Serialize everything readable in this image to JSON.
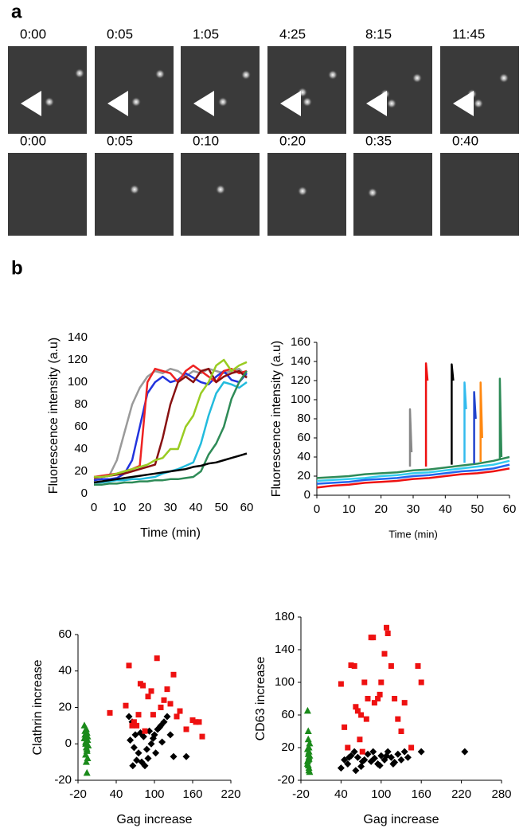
{
  "panel_a": {
    "label": "a",
    "time_labels": [
      [
        "0:00",
        "0:05",
        "1:05",
        "4:25",
        "8:15",
        "11:45"
      ],
      [
        "0:00",
        "0:05",
        "0:10",
        "0:20",
        "0:35",
        "0:40"
      ]
    ]
  },
  "panel_b_label": "b",
  "chart_data": [
    {
      "type": "line",
      "xlabel": "Time (min)",
      "ylabel": "Fluorescence intensity (a.u)",
      "x": [
        0,
        3,
        6,
        9,
        12,
        15,
        18,
        21,
        24,
        27,
        30,
        33,
        36,
        39,
        42,
        45,
        48,
        51,
        54,
        57,
        60
      ],
      "xlim": [
        0,
        60
      ],
      "xticks": [
        0,
        10,
        20,
        30,
        40,
        50,
        60
      ],
      "ylim": [
        0,
        140
      ],
      "yticks": [
        0,
        20,
        40,
        60,
        80,
        100,
        120,
        140
      ],
      "series": [
        {
          "color": "#9a9a9a",
          "values": [
            15,
            15,
            16,
            30,
            55,
            80,
            95,
            105,
            110,
            108,
            112,
            110,
            105,
            110,
            108,
            112,
            110,
            108,
            110,
            112,
            105
          ]
        },
        {
          "color": "#2233dd",
          "values": [
            12,
            13,
            13,
            14,
            18,
            30,
            60,
            90,
            100,
            105,
            100,
            102,
            108,
            104,
            100,
            98,
            105,
            110,
            102,
            100,
            108
          ]
        },
        {
          "color": "#ee2222",
          "values": [
            15,
            16,
            17,
            18,
            20,
            22,
            25,
            100,
            112,
            110,
            108,
            100,
            110,
            115,
            110,
            105,
            100,
            110,
            112,
            108,
            110
          ]
        },
        {
          "color": "#881111",
          "values": [
            14,
            15,
            16,
            17,
            18,
            20,
            22,
            24,
            26,
            50,
            80,
            100,
            105,
            100,
            110,
            112,
            100,
            105,
            108,
            110,
            104
          ]
        },
        {
          "color": "#99cc22",
          "values": [
            15,
            15,
            16,
            18,
            20,
            22,
            24,
            26,
            30,
            32,
            40,
            40,
            60,
            70,
            90,
            100,
            115,
            120,
            110,
            115,
            118
          ]
        },
        {
          "color": "#22bbdd",
          "values": [
            10,
            10,
            11,
            12,
            12,
            13,
            13,
            14,
            15,
            18,
            20,
            22,
            25,
            28,
            45,
            70,
            90,
            100,
            98,
            95,
            100
          ]
        },
        {
          "color": "#2e8b57",
          "values": [
            8,
            8,
            9,
            9,
            10,
            10,
            11,
            11,
            12,
            12,
            13,
            13,
            14,
            15,
            20,
            35,
            45,
            60,
            85,
            100,
            110
          ]
        },
        {
          "color": "#000000",
          "values": [
            10,
            11,
            12,
            13,
            14,
            15,
            16,
            17,
            18,
            19,
            20,
            21,
            22,
            24,
            25,
            27,
            28,
            30,
            32,
            34,
            36
          ]
        }
      ]
    },
    {
      "type": "line",
      "xlabel": "Time (min)",
      "ylabel": "Fluorescence intensity (a.u)",
      "xlim": [
        0,
        60
      ],
      "xticks": [
        0,
        10,
        20,
        30,
        40,
        50,
        60
      ],
      "ylim": [
        0,
        160
      ],
      "yticks": [
        0,
        20,
        40,
        60,
        80,
        100,
        120,
        140,
        160
      ],
      "series": [
        {
          "color": "#2e8b57",
          "x": [
            0,
            5,
            10,
            15,
            20,
            25,
            30,
            35,
            40,
            45,
            50,
            55,
            60
          ],
          "values": [
            18,
            19,
            20,
            22,
            23,
            24,
            26,
            27,
            29,
            31,
            33,
            36,
            40
          ]
        },
        {
          "color": "#33ccee",
          "x": [
            0,
            5,
            10,
            15,
            20,
            25,
            30,
            35,
            40,
            45,
            50,
            55,
            60
          ],
          "values": [
            15,
            16,
            17,
            18,
            20,
            21,
            23,
            24,
            26,
            28,
            30,
            32,
            36
          ]
        },
        {
          "color": "#2266ee",
          "x": [
            0,
            5,
            10,
            15,
            20,
            25,
            30,
            35,
            40,
            45,
            50,
            55,
            60
          ],
          "values": [
            12,
            13,
            14,
            16,
            17,
            18,
            20,
            21,
            23,
            25,
            26,
            28,
            32
          ]
        },
        {
          "color": "#ee1111",
          "x": [
            0,
            5,
            10,
            15,
            20,
            25,
            30,
            35,
            40,
            45,
            50,
            55,
            60
          ],
          "values": [
            8,
            10,
            11,
            13,
            14,
            15,
            17,
            18,
            20,
            22,
            23,
            25,
            28
          ]
        },
        {
          "color": "#888888",
          "x": [
            29,
            29,
            29.5
          ],
          "values": [
            30,
            90,
            45
          ]
        },
        {
          "color": "#ee1111",
          "x": [
            34,
            34,
            34.5
          ],
          "values": [
            30,
            138,
            120
          ]
        },
        {
          "color": "#000000",
          "x": [
            42,
            42,
            42.5
          ],
          "values": [
            32,
            137,
            120
          ]
        },
        {
          "color": "#33bbee",
          "x": [
            46,
            46,
            46.5
          ],
          "values": [
            34,
            118,
            90
          ]
        },
        {
          "color": "#2244cc",
          "x": [
            49,
            49,
            49.5
          ],
          "values": [
            33,
            108,
            80
          ]
        },
        {
          "color": "#ff8811",
          "x": [
            51,
            51,
            51.5
          ],
          "values": [
            35,
            118,
            60
          ]
        },
        {
          "color": "#2e8b57",
          "x": [
            57,
            57,
            57.5
          ],
          "values": [
            38,
            122,
            40
          ]
        }
      ]
    },
    {
      "type": "scatter",
      "xlabel": "Gag increase",
      "ylabel": "Clathrin increase",
      "xlim": [
        -20,
        220
      ],
      "xticks": [
        -20,
        40,
        100,
        160,
        220
      ],
      "ylim": [
        -20,
        60
      ],
      "yticks": [
        -20,
        0,
        20,
        40,
        60
      ],
      "series": [
        {
          "color": "#1a8a1a",
          "marker": "triangle",
          "x": [
            -10,
            -9,
            -8,
            -7,
            -6,
            -5,
            -8,
            -7,
            -6,
            -9,
            -5,
            -4,
            -8,
            -7,
            -6,
            -10,
            -5,
            -7,
            -6,
            -8
          ],
          "values": [
            10,
            5,
            3,
            0,
            -3,
            2,
            -6,
            -10,
            -16,
            7,
            4,
            -1,
            1,
            -2,
            6,
            3,
            -8,
            8,
            -4,
            0
          ]
        },
        {
          "color": "#000000",
          "marker": "diamond",
          "x": [
            60,
            65,
            70,
            62,
            75,
            80,
            85,
            90,
            95,
            100,
            105,
            110,
            115,
            120,
            68,
            72,
            78,
            88,
            92,
            98,
            102,
            108,
            112,
            125,
            130,
            150,
            66,
            83
          ],
          "values": [
            15,
            12,
            5,
            2,
            -5,
            -10,
            -12,
            -8,
            0,
            5,
            8,
            10,
            12,
            15,
            -2,
            -9,
            6,
            -3,
            7,
            3,
            -5,
            9,
            1,
            5,
            -7,
            -7,
            -12,
            4
          ]
        },
        {
          "color": "#ee1111",
          "marker": "square",
          "x": [
            30,
            55,
            60,
            68,
            72,
            78,
            85,
            90,
            98,
            104,
            110,
            120,
            125,
            130,
            135,
            140,
            150,
            160,
            165,
            170,
            175,
            75,
            95,
            82,
            115,
            65
          ],
          "values": [
            17,
            21,
            43,
            12,
            10,
            33,
            7,
            26,
            16,
            47,
            20,
            30,
            22,
            38,
            15,
            18,
            8,
            13,
            12,
            12,
            4,
            16,
            29,
            32,
            24,
            10
          ]
        }
      ]
    },
    {
      "type": "scatter",
      "xlabel": "Gag increase",
      "ylabel": "CD63 increase",
      "xlim": [
        -20,
        280
      ],
      "xticks": [
        -20,
        40,
        100,
        160,
        220,
        280
      ],
      "ylim": [
        -20,
        180
      ],
      "yticks": [
        -20,
        20,
        60,
        100,
        140,
        180
      ],
      "series": [
        {
          "color": "#1a8a1a",
          "marker": "triangle",
          "x": [
            -10,
            -9,
            -8,
            -8,
            -7,
            -9,
            -10,
            -8,
            -7,
            -9,
            -8,
            -10,
            -7,
            -9,
            -8,
            -10,
            -8,
            -9
          ],
          "values": [
            65,
            40,
            20,
            15,
            10,
            5,
            0,
            -5,
            -10,
            12,
            8,
            3,
            25,
            -2,
            6,
            18,
            -8,
            30
          ]
        },
        {
          "color": "#000000",
          "marker": "diamond",
          "x": [
            40,
            45,
            50,
            55,
            60,
            65,
            70,
            75,
            80,
            85,
            90,
            95,
            100,
            105,
            110,
            115,
            120,
            125,
            130,
            135,
            140,
            160,
            225,
            62,
            72,
            88,
            98,
            108,
            118,
            52
          ],
          "values": [
            -5,
            5,
            0,
            10,
            15,
            8,
            -3,
            5,
            12,
            3,
            7,
            0,
            10,
            5,
            15,
            8,
            2,
            12,
            5,
            15,
            8,
            15,
            15,
            -8,
            3,
            15,
            -2,
            10,
            0,
            8
          ]
        },
        {
          "color": "#ee1111",
          "marker": "square",
          "x": [
            40,
            45,
            55,
            60,
            62,
            65,
            68,
            72,
            75,
            80,
            85,
            88,
            90,
            95,
            100,
            105,
            108,
            110,
            115,
            120,
            125,
            130,
            145,
            155,
            160,
            50,
            70,
            78,
            98,
            135
          ],
          "values": [
            98,
            45,
            121,
            120,
            70,
            65,
            30,
            15,
            100,
            80,
            155,
            155,
            75,
            80,
            100,
            135,
            167,
            160,
            120,
            80,
            55,
            40,
            20,
            120,
            100,
            20,
            60,
            55,
            85,
            75
          ]
        }
      ]
    }
  ]
}
